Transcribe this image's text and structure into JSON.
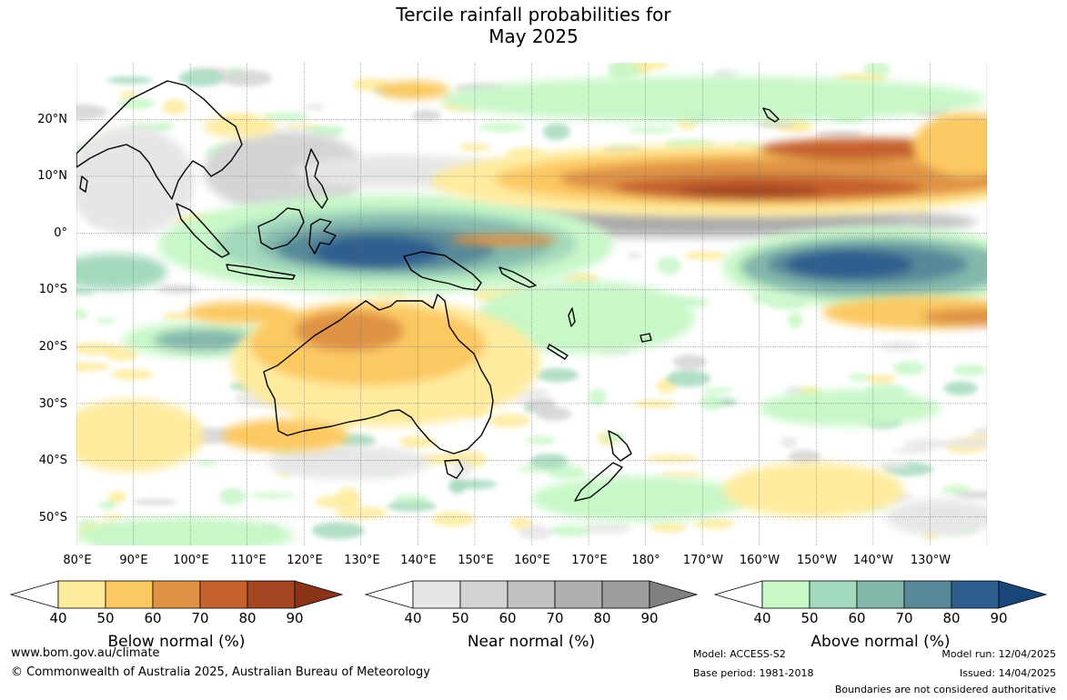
{
  "title": {
    "line1": "Tercile rainfall probabilities for",
    "line2": "May 2025"
  },
  "map": {
    "latitude_labels": [
      "20°N",
      "10°N",
      "0°",
      "10°S",
      "20°S",
      "30°S",
      "40°S",
      "50°S"
    ],
    "longitude_labels": [
      "80°E",
      "90°E",
      "100°E",
      "110°E",
      "120°E",
      "130°E",
      "140°E",
      "150°E",
      "160°E",
      "170°E",
      "180°",
      "170°W",
      "160°W",
      "150°W",
      "140°W",
      "130°W"
    ],
    "latitude_range": [
      -55,
      30
    ],
    "longitude_range": [
      80,
      240
    ],
    "gridlines": true,
    "coastline_color": "#000000",
    "country_border_color": "#888888"
  },
  "legends": {
    "below": {
      "label": "Below normal (%)",
      "ticks": [
        "40",
        "50",
        "60",
        "70",
        "80",
        "90"
      ],
      "colors": [
        "#ffffff",
        "#ffeb9e",
        "#fcc862",
        "#df9244",
        "#c5612e",
        "#a44622",
        "#8a3318"
      ]
    },
    "near": {
      "label": "Near normal (%)",
      "ticks": [
        "40",
        "50",
        "60",
        "70",
        "80",
        "90"
      ],
      "colors": [
        "#ffffff",
        "#e6e6e6",
        "#d4d4d4",
        "#c2c2c2",
        "#b0b0b0",
        "#9e9e9e",
        "#808080"
      ]
    },
    "above": {
      "label": "Above normal (%)",
      "ticks": [
        "40",
        "50",
        "60",
        "70",
        "80",
        "90"
      ],
      "colors": [
        "#ffffff",
        "#c8f7c8",
        "#a3d9bc",
        "#84b8ad",
        "#57899a",
        "#2e5f8e",
        "#18467a"
      ]
    }
  },
  "footer": {
    "website": "www.bom.gov.au/climate",
    "copyright": "© Commonwealth of Australia 2025, Australian Bureau of Meteorology",
    "model": "Model: ACCESS-S2",
    "base_period": "Base period: 1981-2018",
    "model_run": "Model run: 12/04/2025",
    "issued": "Issued: 14/04/2025",
    "disclaimer": "Boundaries are not considered authoritative"
  }
}
